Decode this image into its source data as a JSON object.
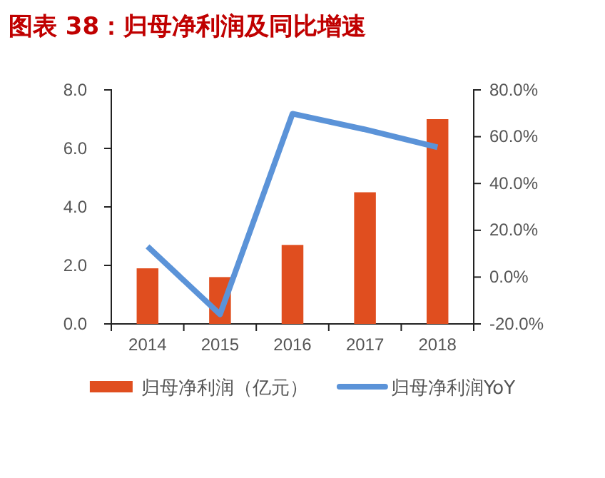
{
  "chart_data": {
    "type": "bar",
    "title": "图表 38：归母净利润及同比增速",
    "categories": [
      "2014",
      "2015",
      "2016",
      "2017",
      "2018"
    ],
    "series": [
      {
        "name": "归母净利润（亿元）",
        "color": "#e04e1f",
        "values": [
          1.9,
          1.6,
          2.7,
          4.5,
          7.0
        ]
      },
      {
        "name": "归母净利润YoY",
        "type": "line",
        "axis": "y2",
        "color": "#5b93d8",
        "values": [
          13.1,
          -15.9,
          69.8,
          63.1,
          55.5
        ]
      }
    ],
    "ylim": [
      0,
      8
    ],
    "yticks": [
      {
        "value": 0,
        "label": "0.0"
      },
      {
        "value": 2,
        "label": "2.0"
      },
      {
        "value": 4,
        "label": "4.0"
      },
      {
        "value": 6,
        "label": "6.0"
      },
      {
        "value": 8,
        "label": "8.0"
      }
    ],
    "y2lim": [
      -20,
      80
    ],
    "y2ticks": [
      {
        "value": -20,
        "label": "-20.0%"
      },
      {
        "value": 0,
        "label": "0.0%"
      },
      {
        "value": 20,
        "label": "20.0%"
      },
      {
        "value": 40,
        "label": "40.0%"
      },
      {
        "value": 60,
        "label": "60.0%"
      },
      {
        "value": 80,
        "label": "80.0%"
      }
    ],
    "legend": "bottom",
    "grid": false,
    "marker": "none",
    "line_style": "solid"
  }
}
